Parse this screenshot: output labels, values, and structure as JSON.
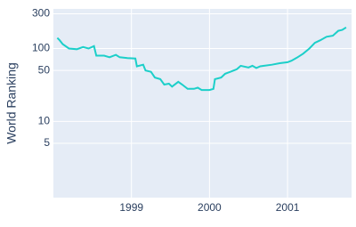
{
  "chart_data": {
    "type": "line",
    "y_label": "World Ranking",
    "log_y": true,
    "grid": true,
    "x": [
      1998.05,
      1998.08,
      1998.12,
      1998.2,
      1998.3,
      1998.38,
      1998.45,
      1998.52,
      1998.55,
      1998.65,
      1998.72,
      1998.8,
      1998.85,
      1998.95,
      1999.05,
      1999.07,
      1999.15,
      1999.18,
      1999.25,
      1999.3,
      1999.37,
      1999.42,
      1999.48,
      1999.52,
      1999.6,
      1999.65,
      1999.72,
      1999.8,
      1999.85,
      1999.9,
      2000.0,
      2000.05,
      2000.07,
      2000.15,
      2000.2,
      2000.27,
      2000.35,
      2000.4,
      2000.5,
      2000.55,
      2000.6,
      2000.65,
      2000.7,
      2000.8,
      2000.9,
      2001.0,
      2001.05,
      2001.12,
      2001.2,
      2001.28,
      2001.35,
      2001.42,
      2001.5,
      2001.58,
      2001.65,
      2001.7,
      2001.75
    ],
    "series": [
      {
        "color": "#1ccfc9",
        "values": [
          140,
          130,
          115,
          100,
          98,
          105,
          100,
          108,
          80,
          80,
          76,
          82,
          76,
          74,
          73,
          57,
          60,
          50,
          48,
          40,
          38,
          32,
          33,
          30,
          35,
          32,
          28,
          28,
          29,
          27,
          27,
          28,
          38,
          40,
          45,
          48,
          52,
          58,
          55,
          58,
          54,
          57,
          58,
          60,
          63,
          65,
          68,
          75,
          85,
          100,
          120,
          130,
          145,
          150,
          175,
          180,
          195
        ]
      }
    ],
    "xlim": [
      1998.0,
      2001.82
    ],
    "xticks": [
      1999,
      2000,
      2001
    ],
    "ylim": [
      0.9,
      350
    ],
    "yticks": [
      5,
      10,
      50,
      100,
      300
    ],
    "background": "#e5ecf6"
  }
}
